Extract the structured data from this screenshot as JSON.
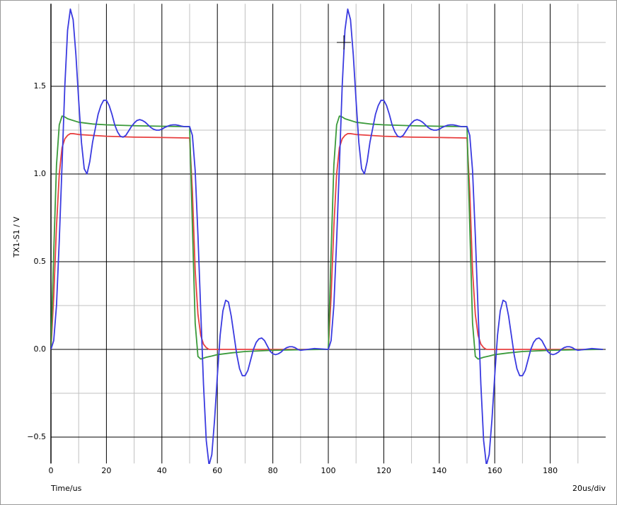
{
  "chart_data": {
    "type": "line",
    "ylabel": "TX1-S1 / V",
    "xlabel": "Time/us",
    "scale_label": "20us/div",
    "xlim": [
      0,
      200
    ],
    "ylim": [
      -0.65,
      1.97
    ],
    "xticks": [
      0,
      20,
      40,
      60,
      80,
      100,
      120,
      140,
      160,
      180
    ],
    "xminor": [
      10,
      30,
      50,
      70,
      90,
      110,
      130,
      150,
      170,
      190
    ],
    "yticks": [
      {
        "value": -0.5,
        "label": "−0.5"
      },
      {
        "value": 0,
        "label": "0.0"
      },
      0.5,
      {
        "value": 1,
        "label": "1.0"
      },
      1.5
    ],
    "yminor": [
      -0.25,
      0.25,
      0.75,
      1.25,
      1.75
    ],
    "grid": true,
    "series": [
      {
        "name": "red",
        "color": "#e84040",
        "x": [
          0,
          1,
          2,
          3,
          4,
          5,
          6,
          7,
          8,
          10,
          20,
          30,
          40,
          50,
          51,
          52,
          53,
          54,
          55,
          56,
          57,
          100,
          101,
          102,
          103,
          104,
          105,
          106,
          107,
          108,
          110,
          120,
          130,
          140,
          150,
          151,
          152,
          153,
          154,
          155,
          156,
          157,
          199
        ],
        "values": [
          0,
          0.3,
          0.7,
          1.0,
          1.15,
          1.2,
          1.22,
          1.23,
          1.23,
          1.225,
          1.215,
          1.21,
          1.208,
          1.205,
          0.9,
          0.45,
          0.2,
          0.08,
          0.03,
          0.01,
          0,
          0,
          0.3,
          0.7,
          1.0,
          1.15,
          1.2,
          1.22,
          1.23,
          1.23,
          1.225,
          1.215,
          1.21,
          1.208,
          1.205,
          0.9,
          0.45,
          0.2,
          0.08,
          0.03,
          0.01,
          0,
          0
        ]
      },
      {
        "name": "green",
        "color": "#3a9a3a",
        "x": [
          0,
          1,
          2,
          3,
          4,
          5,
          6,
          7,
          10,
          15,
          20,
          30,
          40,
          49,
          50,
          51,
          52,
          53,
          54,
          55,
          56,
          58,
          60,
          65,
          70,
          80,
          90,
          99,
          100,
          101,
          102,
          103,
          104,
          105,
          106,
          107,
          110,
          115,
          120,
          130,
          140,
          149,
          150,
          151,
          152,
          153,
          154,
          155,
          156,
          158,
          160,
          165,
          170,
          180,
          190,
          199
        ],
        "values": [
          0,
          0.55,
          1.05,
          1.28,
          1.33,
          1.325,
          1.315,
          1.31,
          1.295,
          1.285,
          1.28,
          1.275,
          1.272,
          1.27,
          1.27,
          0.7,
          0.15,
          -0.04,
          -0.055,
          -0.05,
          -0.045,
          -0.038,
          -0.03,
          -0.02,
          -0.012,
          -0.005,
          -0.002,
          0,
          0,
          0.55,
          1.05,
          1.28,
          1.33,
          1.325,
          1.315,
          1.31,
          1.295,
          1.285,
          1.28,
          1.275,
          1.272,
          1.27,
          1.27,
          0.7,
          0.15,
          -0.04,
          -0.055,
          -0.05,
          -0.045,
          -0.038,
          -0.03,
          -0.02,
          -0.012,
          -0.005,
          -0.002,
          0
        ]
      },
      {
        "name": "blue",
        "color": "#3a3ae0",
        "x": [
          0,
          1,
          2,
          3,
          4,
          5,
          6,
          7,
          8,
          9,
          10,
          11,
          12,
          13,
          14,
          15,
          16,
          17,
          18,
          19,
          20,
          21,
          22,
          23,
          24,
          25,
          26,
          27,
          28,
          29,
          30,
          31,
          32,
          33,
          34,
          35,
          36,
          37,
          38,
          39,
          40,
          41,
          42,
          43,
          44,
          45,
          46,
          47,
          48,
          49,
          50,
          51,
          52,
          53,
          54,
          55,
          56,
          57,
          58,
          59,
          60,
          61,
          62,
          63,
          64,
          65,
          66,
          67,
          68,
          69,
          70,
          71,
          72,
          73,
          74,
          75,
          76,
          77,
          78,
          79,
          80,
          81,
          82,
          83,
          84,
          85,
          86,
          87,
          88,
          89,
          90,
          95,
          100,
          101,
          102,
          103,
          104,
          105,
          106,
          107,
          108,
          109,
          110,
          111,
          112,
          113,
          114,
          115,
          116,
          117,
          118,
          119,
          120,
          121,
          122,
          123,
          124,
          125,
          126,
          127,
          128,
          129,
          130,
          131,
          132,
          133,
          134,
          135,
          136,
          137,
          138,
          139,
          140,
          141,
          142,
          143,
          144,
          145,
          146,
          147,
          148,
          149,
          150,
          151,
          152,
          153,
          154,
          155,
          156,
          157,
          158,
          159,
          160,
          161,
          162,
          163,
          164,
          165,
          166,
          167,
          168,
          169,
          170,
          171,
          172,
          173,
          174,
          175,
          176,
          177,
          178,
          179,
          180,
          181,
          182,
          183,
          184,
          185,
          186,
          187,
          188,
          189,
          190,
          195,
          199
        ],
        "values": [
          0,
          0.05,
          0.25,
          0.62,
          1.05,
          1.5,
          1.82,
          1.94,
          1.88,
          1.68,
          1.42,
          1.18,
          1.03,
          1.0,
          1.07,
          1.18,
          1.26,
          1.34,
          1.39,
          1.42,
          1.42,
          1.39,
          1.34,
          1.28,
          1.24,
          1.215,
          1.21,
          1.22,
          1.245,
          1.27,
          1.29,
          1.305,
          1.31,
          1.305,
          1.295,
          1.28,
          1.265,
          1.255,
          1.25,
          1.25,
          1.255,
          1.265,
          1.272,
          1.278,
          1.28,
          1.28,
          1.277,
          1.273,
          1.27,
          1.27,
          1.27,
          1.22,
          1.02,
          0.65,
          0.22,
          -0.2,
          -0.52,
          -0.66,
          -0.6,
          -0.4,
          -0.15,
          0.08,
          0.22,
          0.28,
          0.27,
          0.19,
          0.08,
          -0.03,
          -0.11,
          -0.15,
          -0.15,
          -0.12,
          -0.06,
          0,
          0.04,
          0.06,
          0.065,
          0.05,
          0.02,
          -0.01,
          -0.025,
          -0.03,
          -0.025,
          -0.015,
          0,
          0.01,
          0.015,
          0.015,
          0.01,
          0,
          -0.005,
          0.005,
          0,
          0.05,
          0.25,
          0.62,
          1.05,
          1.5,
          1.82,
          1.94,
          1.88,
          1.68,
          1.42,
          1.18,
          1.03,
          1.0,
          1.07,
          1.18,
          1.26,
          1.34,
          1.39,
          1.42,
          1.42,
          1.39,
          1.34,
          1.28,
          1.24,
          1.215,
          1.21,
          1.22,
          1.245,
          1.27,
          1.29,
          1.305,
          1.31,
          1.305,
          1.295,
          1.28,
          1.265,
          1.255,
          1.25,
          1.25,
          1.255,
          1.265,
          1.272,
          1.278,
          1.28,
          1.28,
          1.277,
          1.273,
          1.27,
          1.27,
          1.27,
          1.22,
          1.02,
          0.65,
          0.22,
          -0.2,
          -0.52,
          -0.66,
          -0.6,
          -0.4,
          -0.15,
          0.08,
          0.22,
          0.28,
          0.27,
          0.19,
          0.08,
          -0.03,
          -0.11,
          -0.15,
          -0.15,
          -0.12,
          -0.06,
          0,
          0.04,
          0.06,
          0.065,
          0.05,
          0.02,
          -0.01,
          -0.025,
          -0.03,
          -0.025,
          -0.015,
          0,
          0.01,
          0.015,
          0.015,
          0.01,
          0,
          -0.005,
          0.005,
          0
        ]
      }
    ]
  }
}
